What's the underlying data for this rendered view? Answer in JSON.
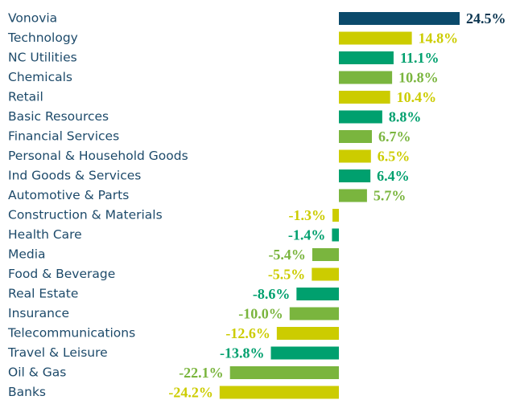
{
  "chart_data": {
    "type": "bar",
    "categories": [
      "Vonovia",
      "Technology",
      "NC Utilities",
      "Chemicals",
      "Retail",
      "Basic Resources",
      "Financial Services",
      "Personal & Household Goods",
      "Ind Goods & Services",
      "Automotive & Parts",
      "Construction & Materials",
      "Health Care",
      "Media",
      "Food & Beverage",
      "Real Estate",
      "Insurance",
      "Telecommunications",
      "Travel & Leisure",
      "Oil & Gas",
      "Banks"
    ],
    "values": [
      24.5,
      14.8,
      11.1,
      10.8,
      10.4,
      8.8,
      6.7,
      6.5,
      6.4,
      5.7,
      -1.3,
      -1.4,
      -5.4,
      -5.5,
      -8.6,
      -10.0,
      -12.6,
      -13.8,
      -22.1,
      -24.2
    ],
    "value_labels": [
      "24.5%",
      "14.8%",
      "11.1%",
      "10.8%",
      "10.4%",
      "8.8%",
      "6.7%",
      "6.5%",
      "6.4%",
      "5.7%",
      "-1.3%",
      "-1.4%",
      "-5.4%",
      "-5.5%",
      "-8.6%",
      "-10.0%",
      "-12.6%",
      "-13.8%",
      "-22.1%",
      "-24.2%"
    ],
    "colors": [
      "#0b4a6b",
      "#cccc00",
      "#00a06e",
      "#7ab53e",
      "#cccc00",
      "#00a06e",
      "#7ab53e",
      "#cccc00",
      "#00a06e",
      "#7ab53e",
      "#cccc00",
      "#00a06e",
      "#7ab53e",
      "#cccc00",
      "#00a06e",
      "#7ab53e",
      "#cccc00",
      "#00a06e",
      "#7ab53e",
      "#cccc00"
    ]
  }
}
